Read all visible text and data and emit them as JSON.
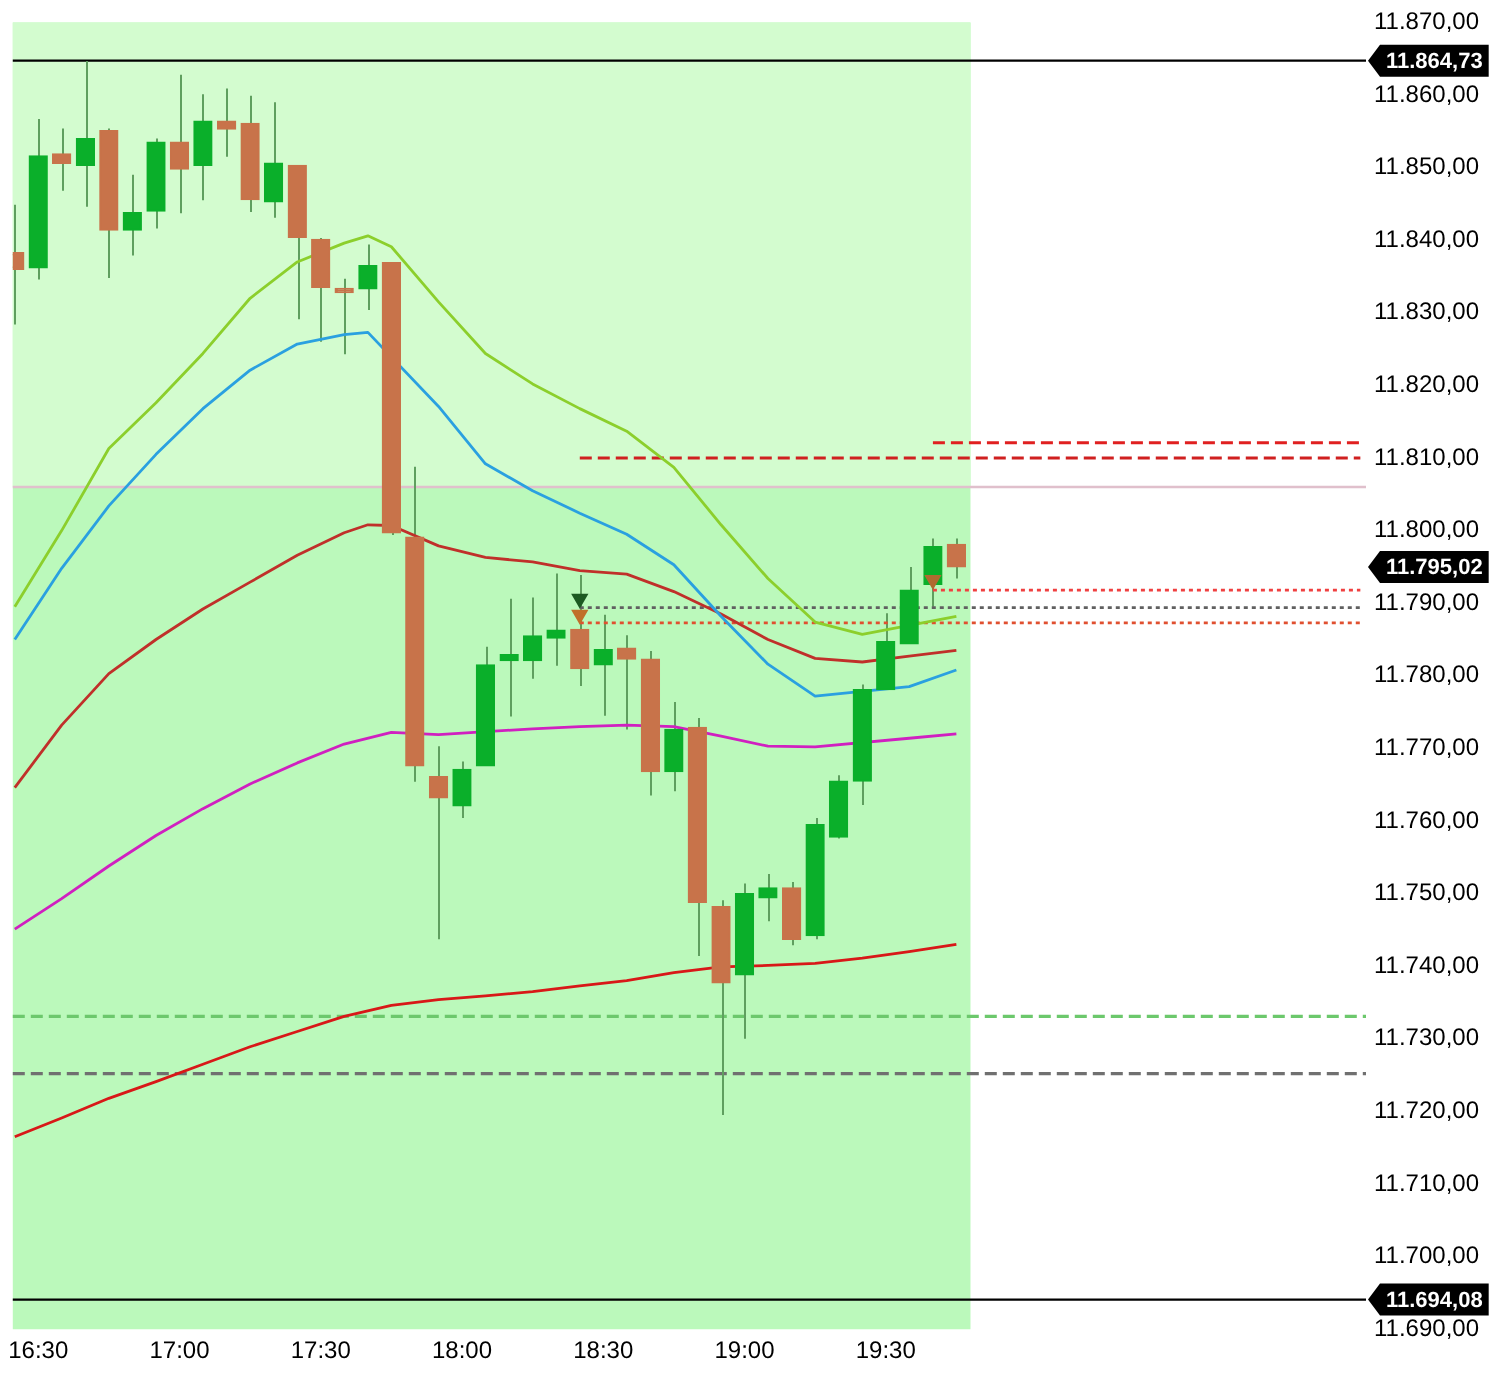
{
  "chart_data": {
    "type": "candlestick",
    "x": [
      16.417,
      16.5,
      16.583,
      16.667,
      16.75,
      16.833,
      16.917,
      17,
      17.083,
      17.167,
      17.25,
      17.333,
      17.417,
      17.5,
      17.583,
      17.667,
      17.75,
      17.833,
      17.917,
      18,
      18.083,
      18.167,
      18.25,
      18.333,
      18.417,
      18.5,
      18.583,
      18.667,
      18.75,
      18.833,
      18.917,
      19,
      19.083,
      19.167,
      19.25,
      19.333,
      19.417,
      19.5,
      19.583,
      19.667,
      19.75
    ],
    "ohlc": [
      [
        11838.3,
        11844.9,
        11828.4,
        11836.0
      ],
      [
        11836.2,
        11856.7,
        11834.6,
        11851.6
      ],
      [
        11851.9,
        11855.4,
        11846.8,
        11850.6
      ],
      [
        11850.3,
        11864.7,
        11844.6,
        11854.0
      ],
      [
        11855.1,
        11855.4,
        11834.8,
        11841.4
      ],
      [
        11841.4,
        11849.0,
        11837.9,
        11843.8
      ],
      [
        11844.0,
        11854.0,
        11841.6,
        11853.5
      ],
      [
        11853.5,
        11862.8,
        11843.7,
        11849.8
      ],
      [
        11850.3,
        11860.1,
        11845.5,
        11856.4
      ],
      [
        11856.4,
        11860.9,
        11851.5,
        11855.3
      ],
      [
        11856.1,
        11859.9,
        11843.9,
        11845.6
      ],
      [
        11845.3,
        11859.0,
        11843.1,
        11850.6
      ],
      [
        11850.3,
        11850.3,
        11829.1,
        11840.4
      ],
      [
        11840.1,
        11840.3,
        11826.0,
        11833.5
      ],
      [
        11832.8,
        11834.7,
        11824.3,
        11832.8
      ],
      [
        11833.3,
        11839.4,
        11830.4,
        11836.5
      ],
      [
        11836.9,
        11836.9,
        11799.4,
        11799.7
      ],
      [
        11799.1,
        11808.8,
        11765.4,
        11767.6
      ],
      [
        11766.1,
        11770.3,
        11743.7,
        11763.2
      ],
      [
        11762.1,
        11768.2,
        11760.4,
        11767.1
      ],
      [
        11767.6,
        11784.0,
        11767.6,
        11781.5
      ],
      [
        11782.1,
        11790.6,
        11774.4,
        11782.9
      ],
      [
        11782.1,
        11790.8,
        11779.6,
        11785.5
      ],
      [
        11785.2,
        11794.1,
        11781.4,
        11786.3
      ],
      [
        11786.4,
        11793.9,
        11778.6,
        11781.0
      ],
      [
        11781.5,
        11788.4,
        11774.5,
        11783.6
      ],
      [
        11783.8,
        11785.6,
        11772.6,
        11782.3
      ],
      [
        11782.3,
        11783.4,
        11763.5,
        11766.8
      ],
      [
        11766.8,
        11776.4,
        11764.1,
        11772.6
      ],
      [
        11772.9,
        11774.2,
        11741.4,
        11748.8
      ],
      [
        11748.2,
        11749.1,
        11719.5,
        11737.7
      ],
      [
        11738.8,
        11751.4,
        11730.0,
        11750.0
      ],
      [
        11749.4,
        11752.7,
        11746.2,
        11750.8
      ],
      [
        11750.8,
        11751.6,
        11742.9,
        11743.7
      ],
      [
        11744.2,
        11760.4,
        11743.7,
        11759.5
      ],
      [
        11757.8,
        11766.3,
        11757.6,
        11765.5
      ],
      [
        11765.5,
        11778.8,
        11762.2,
        11778.1
      ],
      [
        11778.1,
        11788.6,
        11778.1,
        11784.7
      ],
      [
        11784.4,
        11795.0,
        11784.4,
        11791.8
      ],
      [
        11792.6,
        11798.9,
        11789.5,
        11797.8
      ],
      [
        11798.1,
        11798.9,
        11793.4,
        11795.0
      ]
    ],
    "colors": [
      "#c8734a",
      "#0aaf2a",
      "#c8734a",
      "#0aaf2a",
      "#c8734a",
      "#0aaf2a",
      "#0aaf2a",
      "#c8734a",
      "#0aaf2a",
      "#c8734a",
      "#c8734a",
      "#0aaf2a",
      "#c8734a",
      "#c8734a",
      "#c8734a",
      "#0aaf2a",
      "#c8734a",
      "#c8734a",
      "#c8734a",
      "#0aaf2a",
      "#0aaf2a",
      "#0aaf2a",
      "#0aaf2a",
      "#0aaf2a",
      "#c8734a",
      "#0aaf2a",
      "#c8734a",
      "#c8734a",
      "#0aaf2a",
      "#c8734a",
      "#c8734a",
      "#0aaf2a",
      "#0aaf2a",
      "#c8734a",
      "#0aaf2a",
      "#0aaf2a",
      "#0aaf2a",
      "#0aaf2a",
      "#0aaf2a",
      "#0aaf2a",
      "#c8734a"
    ],
    "series": [
      {
        "type": "line",
        "color": "#8ccf2c",
        "x": [
          16.417,
          16.583,
          16.75,
          16.917,
          17.083,
          17.25,
          17.417,
          17.583,
          17.667,
          17.75,
          17.917,
          18.083,
          18.25,
          18.417,
          18.583,
          18.75,
          18.917,
          19.083,
          19.25,
          19.417,
          19.583,
          19.75
        ],
        "values": [
          11789.5,
          11800.0,
          11811.3,
          11817.6,
          11824.4,
          11832.0,
          11837.0,
          11839.6,
          11840.6,
          11839.1,
          11831.5,
          11824.4,
          11820.2,
          11816.8,
          11813.7,
          11808.7,
          11800.8,
          11793.4,
          11787.4,
          11785.7,
          null,
          11788.2
        ]
      },
      {
        "type": "line",
        "color": "#2aa0e0",
        "x": [
          16.417,
          16.583,
          16.75,
          16.917,
          17.083,
          17.25,
          17.417,
          17.583,
          17.667,
          17.75,
          17.917,
          18.083,
          18.25,
          18.417,
          18.583,
          18.75,
          18.917,
          19.083,
          19.25,
          19.417,
          19.583,
          19.75
        ],
        "values": [
          11785.0,
          11794.8,
          11803.4,
          11810.5,
          11816.8,
          11822.1,
          11825.7,
          11827.0,
          11827.3,
          null,
          11817.1,
          11809.2,
          11805.5,
          11802.4,
          11799.5,
          11795.3,
          11788.2,
          11781.6,
          11777.2,
          null,
          11778.5,
          11780.8
        ]
      },
      {
        "type": "line",
        "color": "#c0302a",
        "x": [
          16.417,
          16.583,
          16.75,
          16.917,
          17.083,
          17.25,
          17.417,
          17.583,
          17.667,
          17.75,
          17.917,
          18.083,
          18.25,
          18.417,
          18.583,
          18.75,
          18.917,
          19.083,
          19.25,
          19.417,
          19.583,
          19.75
        ],
        "values": [
          11764.6,
          11773.2,
          11780.3,
          11785.0,
          11789.2,
          11792.9,
          11796.6,
          11799.7,
          11800.8,
          11800.7,
          11797.9,
          11796.3,
          11795.7,
          11794.5,
          11794.0,
          11791.6,
          11788.5,
          11785.0,
          11782.4,
          11781.9,
          11782.7,
          11783.5
        ]
      },
      {
        "type": "line",
        "color": "#d020c0",
        "x": [
          16.417,
          16.583,
          16.75,
          16.917,
          17.083,
          17.25,
          17.417,
          17.583,
          17.75,
          17.917,
          18.083,
          18.25,
          18.417,
          18.583,
          18.75,
          18.917,
          19.083,
          19.25,
          19.417,
          19.583,
          19.75
        ],
        "values": [
          11745.1,
          11749.3,
          11753.8,
          11758.0,
          11761.7,
          11765.1,
          11768.0,
          11770.6,
          11772.2,
          11771.9,
          null,
          11772.7,
          11773.0,
          11773.2,
          11773.0,
          11771.7,
          11770.3,
          11770.2,
          null,
          11771.4,
          11772.0
        ]
      },
      {
        "type": "line",
        "color": "#d81818",
        "x": [
          16.417,
          16.583,
          16.75,
          16.917,
          17.083,
          17.25,
          17.417,
          17.583,
          17.75,
          17.917,
          18.083,
          18.25,
          18.417,
          18.583,
          18.75,
          18.917,
          19.083,
          19.25,
          19.417,
          19.583,
          19.75
        ],
        "values": [
          11716.5,
          11719.1,
          11721.8,
          11724.1,
          11726.5,
          11728.9,
          11731.0,
          11733.1,
          11734.6,
          11735.4,
          11735.9,
          11736.5,
          11737.3,
          11738.0,
          11739.1,
          11739.9,
          11740.1,
          11740.4,
          11741.1,
          11742.0,
          11743.0
        ]
      },
      {
        "type": "line",
        "color": "#e02020",
        "line_style": "dashed",
        "x": [
          19.667,
          21.18
        ],
        "values": [
          11812.1,
          11812.1
        ]
      },
      {
        "type": "line",
        "color": "#d02020",
        "line_style": "dashed",
        "x": [
          18.417,
          21.18
        ],
        "values": [
          11810.0,
          11810.0
        ]
      },
      {
        "type": "line",
        "color": "#f04040",
        "line_style": "dotted",
        "x": [
          19.667,
          21.18
        ],
        "values": [
          11791.8,
          11791.8
        ]
      },
      {
        "type": "line",
        "color": "#606060",
        "line_style": "dotted",
        "x": [
          18.417,
          21.18
        ],
        "values": [
          11789.4,
          11789.4
        ]
      },
      {
        "type": "line",
        "color": "#e05030",
        "line_style": "dotted",
        "x": [
          18.417,
          21.18
        ],
        "values": [
          11787.3,
          11787.3
        ]
      },
      {
        "type": "scatter",
        "marker": "triangle",
        "x": [
          18.417,
          18.417,
          19.667
        ],
        "values": [
          11790.6,
          11788.4,
          11793.2
        ],
        "colors": [
          "#1d5a22",
          "#c0702a",
          "#b06a30"
        ]
      }
    ],
    "xlim": [
      16.41,
      21.2
    ],
    "xticks": [
      {
        "value": 16.5,
        "label": "16:30"
      },
      {
        "value": 17,
        "label": "17:00"
      },
      {
        "value": 17.5,
        "label": "17:30"
      },
      {
        "value": 18,
        "label": "18:00"
      },
      {
        "value": 18.5,
        "label": "18:30"
      },
      {
        "value": 19,
        "label": "19:00"
      },
      {
        "value": 19.5,
        "label": "19:30"
      }
    ],
    "ylim": [
      11690,
      11870
    ],
    "yticks": [
      {
        "value": 11690,
        "label": "11.690,00"
      },
      {
        "value": 11700,
        "label": "11.700,00"
      },
      {
        "value": 11710,
        "label": "11.710,00"
      },
      {
        "value": 11720,
        "label": "11.720,00"
      },
      {
        "value": 11730,
        "label": "11.730,00"
      },
      {
        "value": 11740,
        "label": "11.740,00"
      },
      {
        "value": 11750,
        "label": "11.750,00"
      },
      {
        "value": 11760,
        "label": "11.760,00"
      },
      {
        "value": 11770,
        "label": "11.770,00"
      },
      {
        "value": 11780,
        "label": "11.780,00"
      },
      {
        "value": 11790,
        "label": "11.790,00"
      },
      {
        "value": 11800,
        "label": "11.800,00"
      },
      {
        "value": 11810,
        "label": "11.810,00"
      },
      {
        "value": 11820,
        "label": "11.820,00"
      },
      {
        "value": 11830,
        "label": "11.830,00"
      },
      {
        "value": 11840,
        "label": "11.840,00"
      },
      {
        "value": 11850,
        "label": "11.850,00"
      },
      {
        "value": 11860,
        "label": "11.860,00"
      },
      {
        "value": 11870,
        "label": "11.870,00"
      }
    ],
    "ref_lines": [
      {
        "axis": "y",
        "value": 11864.73,
        "label": "11.864,73",
        "color": "#000000",
        "line_style": "solid"
      },
      {
        "axis": "y",
        "value": 11694.08,
        "label": "11.694,08",
        "color": "#000000",
        "line_style": "solid"
      },
      {
        "axis": "y",
        "value": 11806,
        "color": "#e0c0cc",
        "line_style": "solid"
      },
      {
        "axis": "y",
        "value": 11733.1,
        "color": "#6cc86c",
        "line_style": "dashed"
      },
      {
        "axis": "y",
        "value": 11725.2,
        "color": "#707070",
        "line_style": "dashed"
      }
    ],
    "bands": [
      {
        "axis": "x",
        "from": 16.41,
        "to": 19.8,
        "color": "#bbf9bb"
      },
      {
        "axis": "y",
        "from": 11806,
        "to": 11870,
        "color": "#d3fccf"
      }
    ],
    "annotations": [
      "11.795,02"
    ]
  }
}
